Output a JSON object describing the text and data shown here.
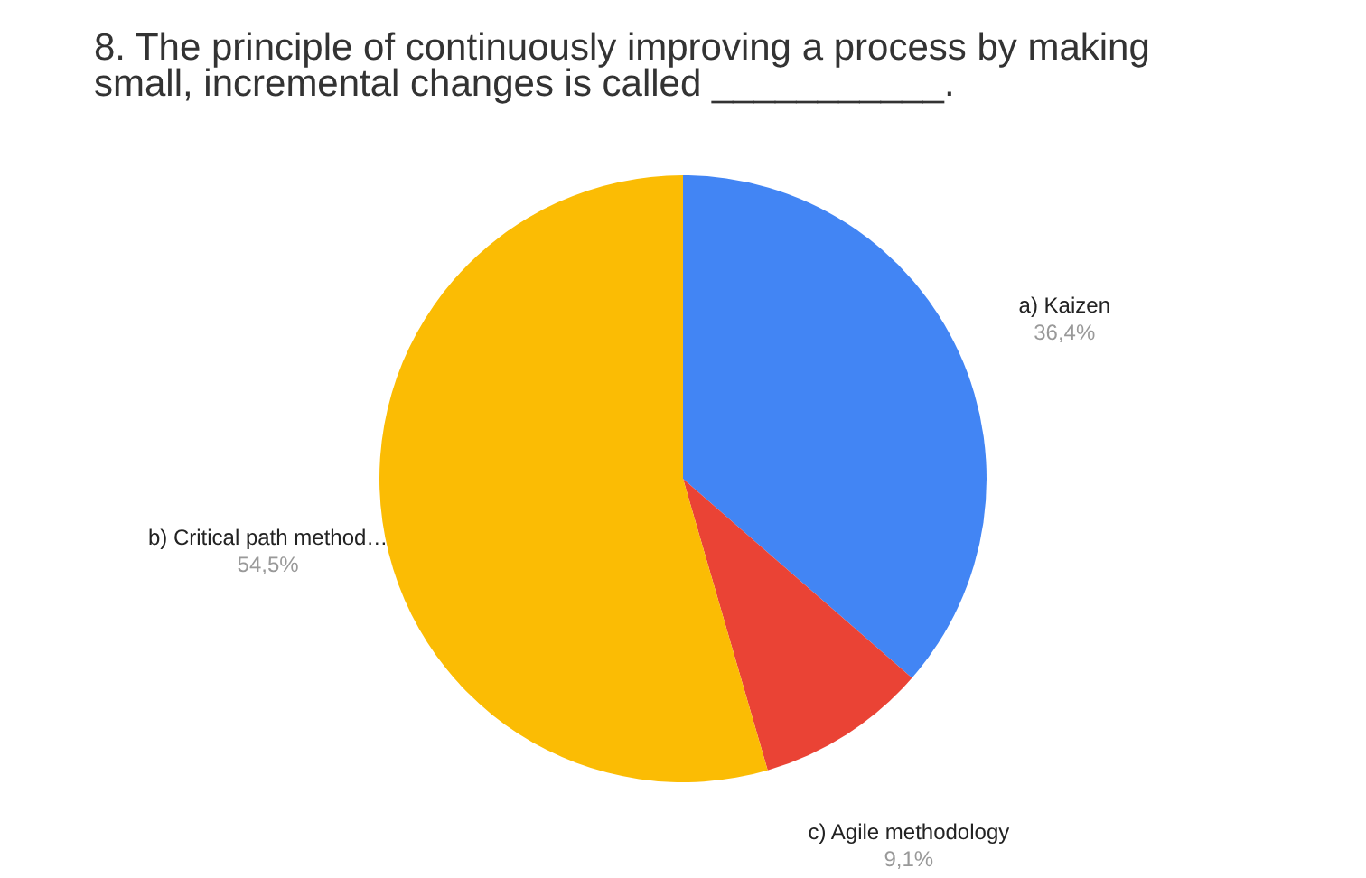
{
  "chart_data": {
    "type": "pie",
    "title": "8. The principle of continuously improving a process by making small, incremental changes is called ___________.",
    "categories": [
      "a) Kaizen",
      "c) Agile methodology",
      "b) Critical path method…"
    ],
    "values": [
      36.4,
      9.1,
      54.5
    ],
    "colors": [
      "#4285f4",
      "#ea4335",
      "#fbbc04"
    ],
    "value_labels": [
      "36,4%",
      "9,1%",
      "54,5%"
    ],
    "legend": false
  }
}
